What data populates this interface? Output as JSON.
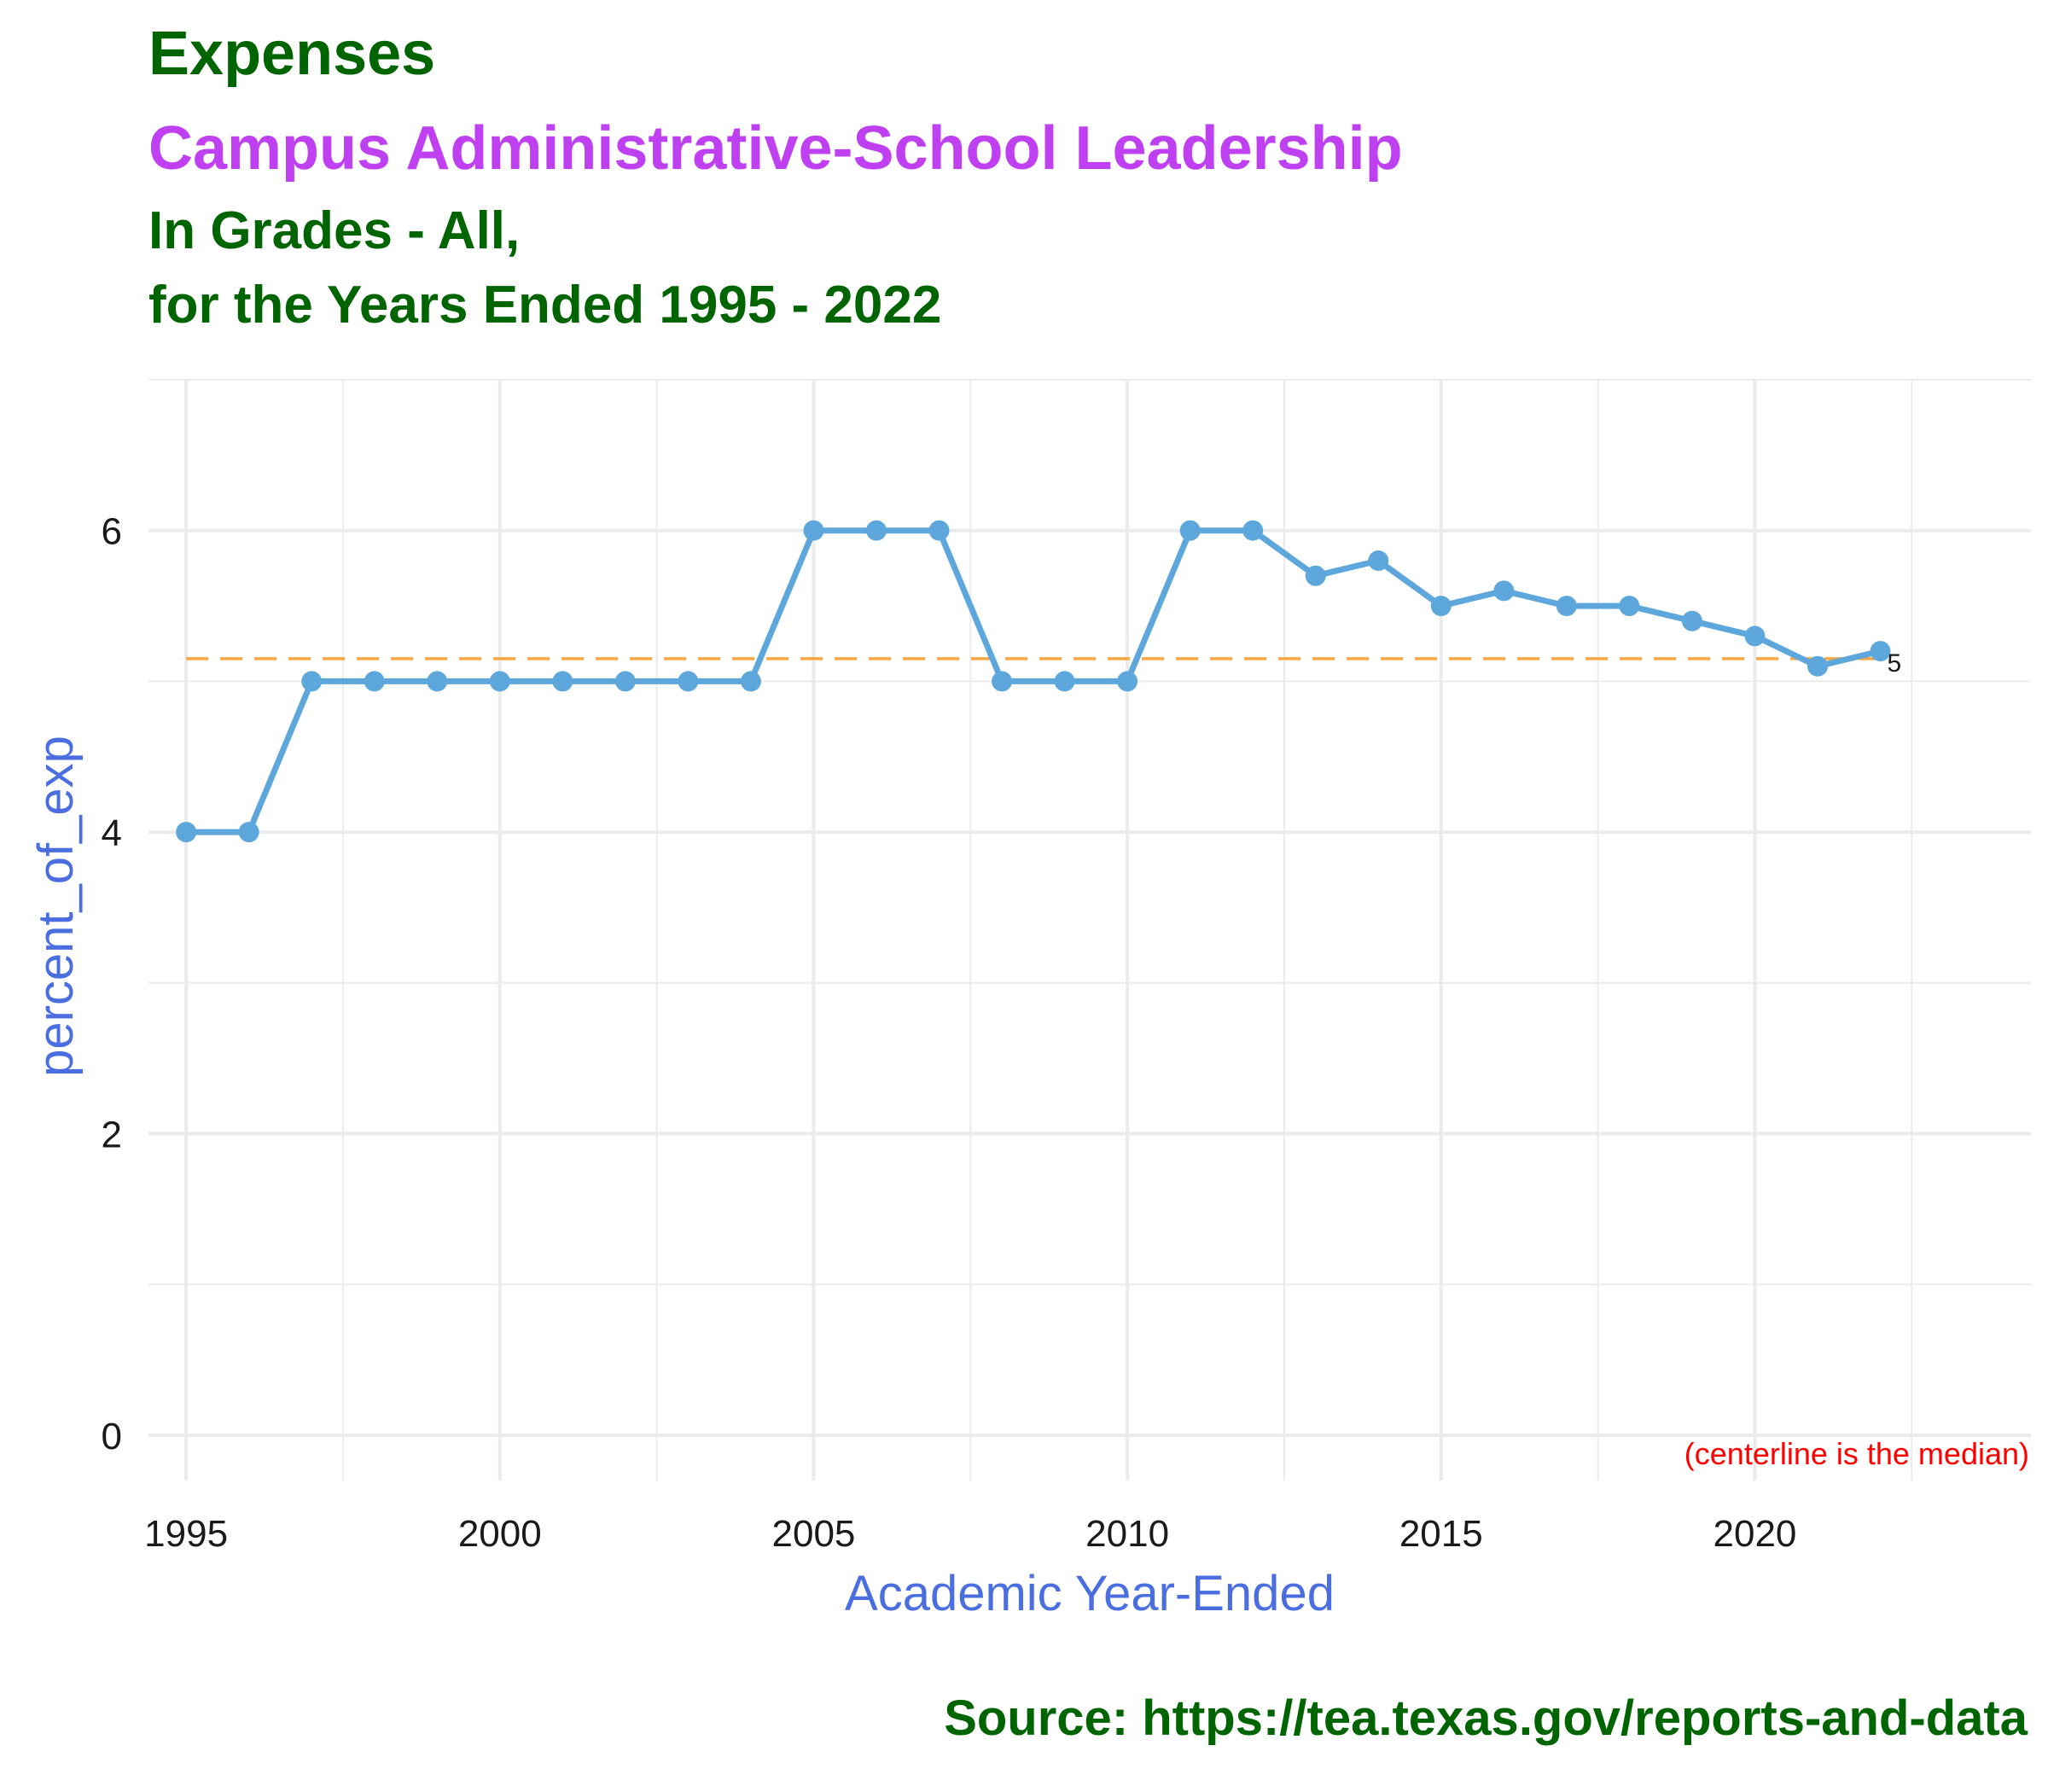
{
  "title": "Expenses",
  "subtitle_main": "Campus Administrative-School Leadership",
  "subtitle_line2": "In Grades - All,",
  "subtitle_line3": "for the Years Ended 1995 - 2022",
  "caption": "Source:  https://tea.texas.gov/reports-and-data",
  "colors": {
    "title": "#006400",
    "subtitle_main": "#bf40f0",
    "axis_title": "#4a6ee0",
    "line": "#5ea7dc",
    "median_line": "#f5a742",
    "note": "#ff0000",
    "grid": "#ebebeb"
  },
  "chart_data": {
    "type": "line",
    "xlabel": "Academic Year-Ended",
    "ylabel": "percent_of_exp",
    "xlim": [
      1994.4,
      2024.4
    ],
    "ylim": [
      -0.3,
      7.0
    ],
    "x_ticks": [
      1995,
      2000,
      2005,
      2010,
      2015,
      2020
    ],
    "y_ticks": [
      0,
      2,
      4,
      6
    ],
    "grid": true,
    "legend": "none",
    "series": [
      {
        "x": [
          1995,
          1996,
          1997,
          1998,
          1999,
          2000,
          2001,
          2002,
          2003,
          2004,
          2005,
          2006,
          2007,
          2008,
          2009,
          2010,
          2011,
          2012,
          2013,
          2014,
          2015,
          2016,
          2017,
          2018,
          2019,
          2020,
          2021,
          2022
        ],
        "values": [
          4,
          4,
          5,
          5,
          5,
          5,
          5,
          5,
          5,
          5,
          6,
          6,
          6,
          5,
          5,
          5,
          6,
          6,
          5.7,
          5.8,
          5.5,
          5.6,
          5.5,
          5.5,
          5.4,
          5.3,
          5.1,
          5.2
        ]
      }
    ],
    "median": 5.15,
    "end_label": "5",
    "note": "(centerline is the median)"
  }
}
